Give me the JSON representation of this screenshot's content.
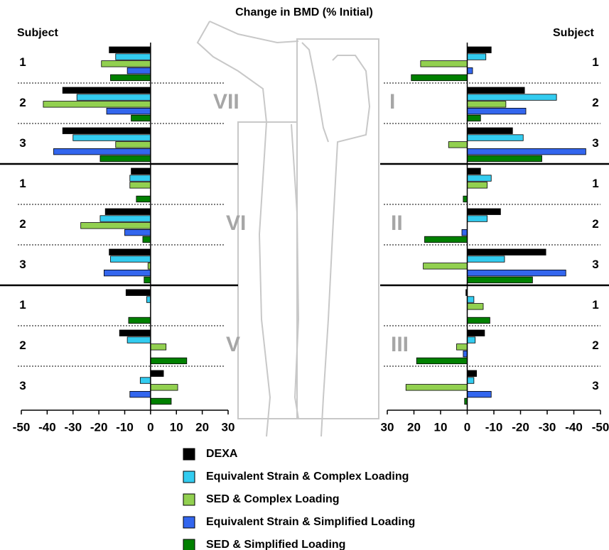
{
  "chart_data": [
    {
      "type": "bar",
      "orientation": "horizontal",
      "title": "Change in BMD (% Initial)",
      "subject_label": "Subject",
      "regions": [
        "VII",
        "VI",
        "V"
      ],
      "categories": [
        "1",
        "2",
        "3",
        "1",
        "2",
        "3",
        "1",
        "2",
        "3"
      ],
      "xlim": [
        -50,
        30
      ],
      "xticks": [
        -50,
        -40,
        -30,
        -20,
        -10,
        0,
        10,
        20,
        30
      ],
      "series": [
        {
          "name": "DEXA",
          "color": "#000000",
          "values": [
            -16,
            -34,
            -34,
            -7.5,
            -17.5,
            -16,
            -9.5,
            -12,
            5
          ]
        },
        {
          "name": "Equivalent Strain & Complex Loading",
          "color": "#33ccf0",
          "values": [
            -13.5,
            -28.5,
            -30,
            -8,
            -19.5,
            -15.5,
            -1.5,
            -9,
            -4
          ]
        },
        {
          "name": "SED & Complex Loading",
          "color": "#92d050",
          "values": [
            -19,
            -41.5,
            -13.5,
            -8,
            -27,
            -1,
            0,
            6,
            10.5
          ]
        },
        {
          "name": "Equivalent Strain & Simplified Loading",
          "color": "#3366ee",
          "values": [
            -9,
            -17,
            -37.5,
            0,
            -10,
            -18,
            0,
            0,
            -8
          ]
        },
        {
          "name": "SED & Simplified Loading",
          "color": "#008000",
          "values": [
            -15.5,
            -7.5,
            -19.5,
            -5.5,
            -3,
            -2.5,
            -8.5,
            14,
            8
          ]
        }
      ]
    },
    {
      "type": "bar",
      "orientation": "horizontal",
      "subject_label": "Subject",
      "regions": [
        "I",
        "II",
        "III"
      ],
      "categories": [
        "1",
        "2",
        "3",
        "1",
        "2",
        "3",
        "1",
        "2",
        "3"
      ],
      "xlim": [
        30,
        -50
      ],
      "xticks": [
        30,
        20,
        10,
        0,
        -10,
        -20,
        -30,
        -40,
        -50
      ],
      "series": [
        {
          "color": "#000000",
          "values": [
            -9,
            -21.5,
            -17,
            -5,
            -12.5,
            -29.5,
            0.5,
            -6.5,
            -3.5
          ]
        },
        {
          "color": "#33ccf0",
          "values": [
            -7,
            -33.5,
            -21,
            -9,
            -7.5,
            -14,
            -2.5,
            -3,
            -2.5
          ]
        },
        {
          "color": "#92d050",
          "values": [
            17.5,
            -14.5,
            7,
            -7.5,
            0,
            16.5,
            -6,
            4,
            23
          ]
        },
        {
          "color": "#3366ee",
          "values": [
            -2,
            -22,
            -44.5,
            0,
            2,
            -37,
            0,
            1.5,
            -9
          ]
        },
        {
          "color": "#008000",
          "values": [
            21,
            -5,
            -28,
            1.5,
            16,
            -24.5,
            -8.5,
            19,
            1
          ]
        }
      ]
    }
  ]
}
